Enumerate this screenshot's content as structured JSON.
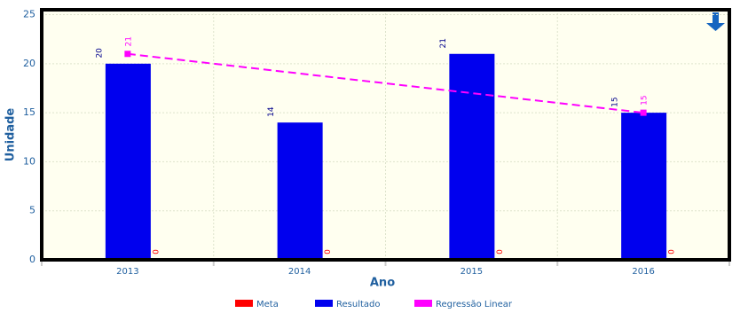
{
  "chart_data": {
    "type": "bar",
    "x_label": "Ano",
    "y_label": "Unidade",
    "categories": [
      "2013",
      "2014",
      "2015",
      "2016"
    ],
    "series": [
      {
        "name": "Meta",
        "color": "#ff0000",
        "values": [
          0,
          0,
          0,
          0
        ]
      },
      {
        "name": "Resultado",
        "color": "#0000ee",
        "values": [
          20,
          14,
          21,
          15
        ]
      },
      {
        "name": "Regressão Linear",
        "color": "#ff00ff",
        "values": [
          21,
          19,
          17,
          15
        ]
      }
    ],
    "ylim": [
      0,
      25.5
    ],
    "yticks": [
      0,
      5,
      10,
      15,
      20,
      25
    ],
    "grid": true,
    "legend": "bottom"
  }
}
